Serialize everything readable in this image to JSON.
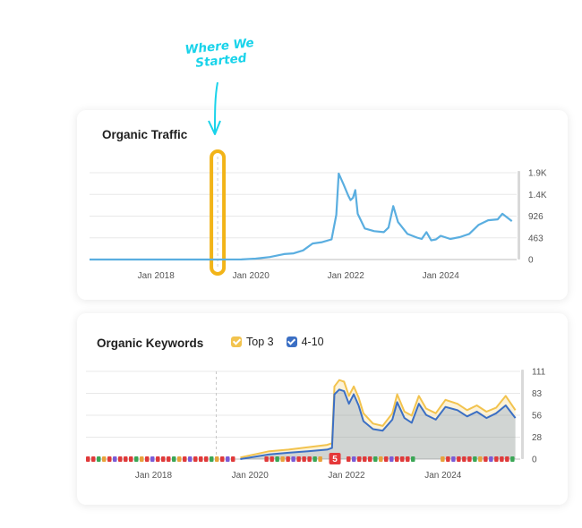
{
  "annotation": {
    "line1": "Where We",
    "line2": "Started"
  },
  "chart_data": [
    {
      "type": "line",
      "title": "Organic Traffic",
      "x_ticks": [
        "Jan 2018",
        "Jan 2020",
        "Jan 2022",
        "Jan 2024"
      ],
      "y_ticks": [
        "1.9K",
        "1.4K",
        "926",
        "463",
        "0"
      ],
      "ylim": [
        0,
        1900
      ],
      "grid": true,
      "series": [
        {
          "color": "#5aaee0",
          "points": [
            [
              2016.6,
              0
            ],
            [
              2017.5,
              0
            ],
            [
              2018.5,
              0
            ],
            [
              2019.3,
              0
            ],
            [
              2019.8,
              2
            ],
            [
              2020.1,
              20
            ],
            [
              2020.4,
              55
            ],
            [
              2020.7,
              120
            ],
            [
              2020.9,
              135
            ],
            [
              2021.1,
              200
            ],
            [
              2021.3,
              350
            ],
            [
              2021.5,
              380
            ],
            [
              2021.7,
              440
            ],
            [
              2021.8,
              980
            ],
            [
              2021.85,
              1880
            ],
            [
              2021.95,
              1650
            ],
            [
              2022.05,
              1400
            ],
            [
              2022.1,
              1300
            ],
            [
              2022.15,
              1350
            ],
            [
              2022.2,
              1520
            ],
            [
              2022.25,
              1000
            ],
            [
              2022.4,
              680
            ],
            [
              2022.6,
              620
            ],
            [
              2022.8,
              600
            ],
            [
              2022.9,
              700
            ],
            [
              2023.0,
              1170
            ],
            [
              2023.1,
              820
            ],
            [
              2023.3,
              560
            ],
            [
              2023.5,
              480
            ],
            [
              2023.6,
              450
            ],
            [
              2023.7,
              600
            ],
            [
              2023.8,
              420
            ],
            [
              2023.9,
              440
            ],
            [
              2024.0,
              520
            ],
            [
              2024.2,
              450
            ],
            [
              2024.4,
              490
            ],
            [
              2024.6,
              560
            ],
            [
              2024.8,
              760
            ],
            [
              2025.0,
              860
            ],
            [
              2025.2,
              880
            ],
            [
              2025.3,
              1000
            ],
            [
              2025.5,
              840
            ]
          ]
        }
      ],
      "highlight_x": 2019.3
    },
    {
      "type": "area",
      "title": "Organic Keywords",
      "x_ticks": [
        "Jan 2018",
        "Jan 2020",
        "Jan 2022",
        "Jan 2024"
      ],
      "y_ticks": [
        "111",
        "83",
        "56",
        "28",
        "0"
      ],
      "ylim": [
        0,
        111
      ],
      "grid": true,
      "legend": [
        {
          "name": "Top 3",
          "color": "#f2c34e"
        },
        {
          "name": "4-10",
          "color": "#3b6fc4"
        }
      ],
      "series": [
        {
          "name": "Top 3",
          "color": "#f2c34e",
          "points": [
            [
              2019.8,
              2
            ],
            [
              2020.1,
              6
            ],
            [
              2020.4,
              10
            ],
            [
              2020.8,
              12
            ],
            [
              2021.2,
              15
            ],
            [
              2021.6,
              18
            ],
            [
              2021.7,
              20
            ],
            [
              2021.75,
              92
            ],
            [
              2021.85,
              100
            ],
            [
              2021.95,
              98
            ],
            [
              2022.05,
              80
            ],
            [
              2022.15,
              92
            ],
            [
              2022.25,
              78
            ],
            [
              2022.35,
              58
            ],
            [
              2022.55,
              45
            ],
            [
              2022.75,
              42
            ],
            [
              2022.95,
              58
            ],
            [
              2023.05,
              82
            ],
            [
              2023.2,
              60
            ],
            [
              2023.35,
              55
            ],
            [
              2023.5,
              80
            ],
            [
              2023.65,
              64
            ],
            [
              2023.85,
              58
            ],
            [
              2024.05,
              75
            ],
            [
              2024.3,
              70
            ],
            [
              2024.5,
              62
            ],
            [
              2024.7,
              68
            ],
            [
              2024.9,
              60
            ],
            [
              2025.1,
              65
            ],
            [
              2025.3,
              80
            ],
            [
              2025.5,
              62
            ]
          ]
        },
        {
          "name": "4-10",
          "color": "#3b6fc4",
          "points": [
            [
              2019.8,
              0
            ],
            [
              2020.1,
              3
            ],
            [
              2020.4,
              6
            ],
            [
              2020.8,
              8
            ],
            [
              2021.2,
              10
            ],
            [
              2021.6,
              12
            ],
            [
              2021.7,
              14
            ],
            [
              2021.75,
              82
            ],
            [
              2021.85,
              88
            ],
            [
              2021.95,
              86
            ],
            [
              2022.05,
              70
            ],
            [
              2022.15,
              82
            ],
            [
              2022.25,
              68
            ],
            [
              2022.35,
              48
            ],
            [
              2022.55,
              38
            ],
            [
              2022.75,
              36
            ],
            [
              2022.95,
              50
            ],
            [
              2023.05,
              72
            ],
            [
              2023.2,
              52
            ],
            [
              2023.35,
              46
            ],
            [
              2023.5,
              70
            ],
            [
              2023.65,
              56
            ],
            [
              2023.85,
              50
            ],
            [
              2024.05,
              66
            ],
            [
              2024.3,
              62
            ],
            [
              2024.5,
              54
            ],
            [
              2024.7,
              60
            ],
            [
              2024.9,
              52
            ],
            [
              2025.1,
              58
            ],
            [
              2025.3,
              68
            ],
            [
              2025.5,
              52
            ]
          ]
        }
      ],
      "markers": [
        {
          "x": 2021.75,
          "label": "5"
        }
      ],
      "dashed_x": 2019.3
    }
  ]
}
